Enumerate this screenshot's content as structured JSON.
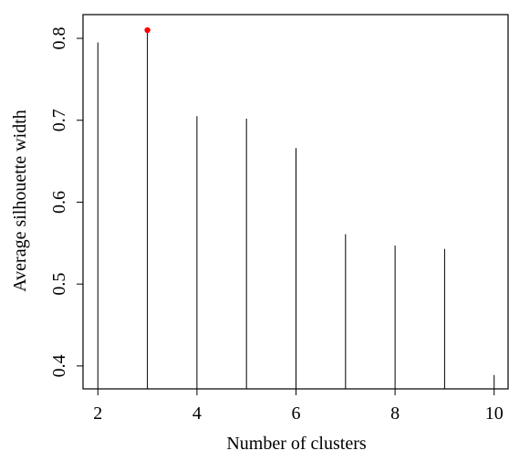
{
  "chart_data": {
    "type": "line",
    "style": "vertical-lines",
    "xlabel": "Number of clusters",
    "ylabel": "Average silhouette width",
    "x": [
      2,
      3,
      4,
      5,
      6,
      7,
      8,
      9,
      10
    ],
    "values": [
      0.795,
      0.81,
      0.705,
      0.702,
      0.666,
      0.561,
      0.547,
      0.543,
      0.389
    ],
    "highlight": {
      "x": 3,
      "y": 0.81,
      "color": "#ff0000"
    },
    "xlim": [
      1.7,
      10.3
    ],
    "ylim": [
      0.372,
      0.829
    ],
    "xticks": [
      2,
      4,
      6,
      8,
      10
    ],
    "xtick_labels": [
      "2",
      "4",
      "6",
      "8",
      "10"
    ],
    "yticks": [
      0.4,
      0.5,
      0.6,
      0.7,
      0.8
    ],
    "ytick_labels": [
      "0.4",
      "0.5",
      "0.6",
      "0.7",
      "0.8"
    ],
    "grid": false,
    "line_color": "#000000"
  }
}
